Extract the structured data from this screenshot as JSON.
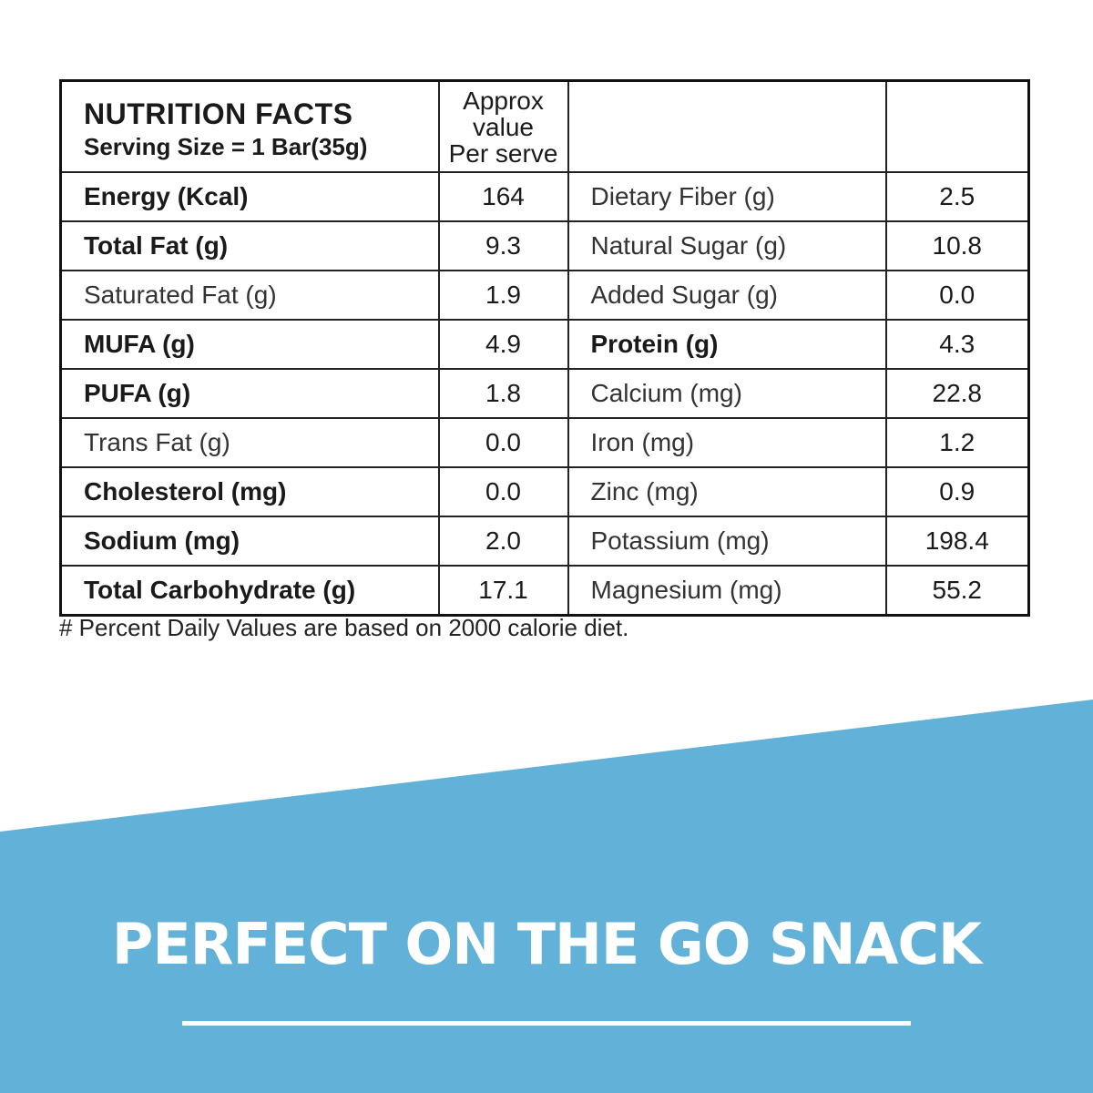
{
  "colors": {
    "banner_blue": "#62b1d8",
    "text_dark": "#1a1a1a",
    "white": "#ffffff"
  },
  "table": {
    "title": "NUTRITION FACTS",
    "serving_size": "Serving Size = 1 Bar(35g)",
    "approx_header": [
      "Approx",
      "value",
      "Per serve"
    ],
    "rows": [
      {
        "left_label": "Energy (Kcal)",
        "left_value": "164",
        "left_bold": true,
        "right_label": "Dietary Fiber (g)",
        "right_value": "2.5",
        "right_bold": false
      },
      {
        "left_label": "Total Fat (g)",
        "left_value": "9.3",
        "left_bold": true,
        "right_label": "Natural Sugar (g)",
        "right_value": "10.8",
        "right_bold": false
      },
      {
        "left_label": "Saturated Fat (g)",
        "left_value": "1.9",
        "left_bold": false,
        "right_label": "Added Sugar (g)",
        "right_value": "0.0",
        "right_bold": false
      },
      {
        "left_label": "MUFA (g)",
        "left_value": "4.9",
        "left_bold": true,
        "right_label": "Protein (g)",
        "right_value": "4.3",
        "right_bold": true
      },
      {
        "left_label": "PUFA (g)",
        "left_value": "1.8",
        "left_bold": true,
        "right_label": "Calcium (mg)",
        "right_value": "22.8",
        "right_bold": false
      },
      {
        "left_label": "Trans Fat (g)",
        "left_value": "0.0",
        "left_bold": false,
        "right_label": "Iron (mg)",
        "right_value": "1.2",
        "right_bold": false
      },
      {
        "left_label": "Cholesterol (mg)",
        "left_value": "0.0",
        "left_bold": true,
        "right_label": "Zinc (mg)",
        "right_value": "0.9",
        "right_bold": false
      },
      {
        "left_label": "Sodium (mg)",
        "left_value": "2.0",
        "left_bold": true,
        "right_label": "Potassium (mg)",
        "right_value": "198.4",
        "right_bold": false
      },
      {
        "left_label": "Total Carbohydrate (g)",
        "left_value": "17.1",
        "left_bold": true,
        "right_label": "Magnesium (mg)",
        "right_value": "55.2",
        "right_bold": false
      }
    ]
  },
  "footnote": "# Percent Daily Values are based on 2000 calorie diet.",
  "banner": {
    "tagline": "PERFECT ON THE GO SNACK"
  }
}
